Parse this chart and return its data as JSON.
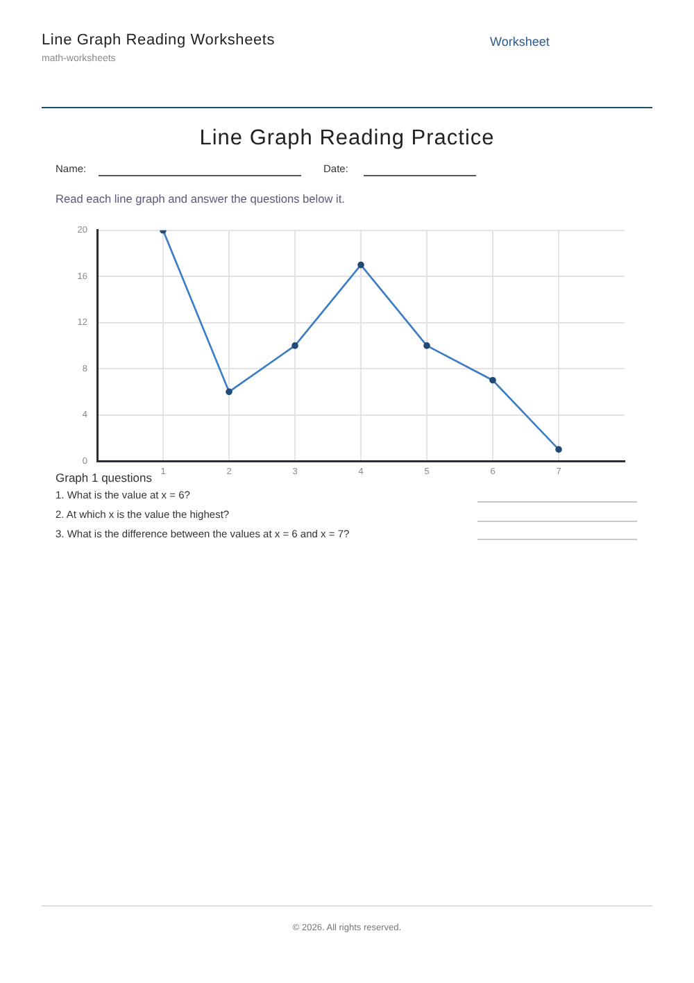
{
  "chart_data": {
    "type": "line",
    "title": "Line Graph Reading Practice",
    "subtitle": "Read each line graph and answer the questions below it.",
    "x": [
      1,
      2,
      3,
      4,
      5,
      6,
      7
    ],
    "series": [
      {
        "color": "#3a7cc6",
        "values": [
          20,
          6,
          10,
          17,
          10,
          7,
          1
        ]
      }
    ],
    "xlim": [
      0,
      8
    ],
    "xticks": [
      1,
      2,
      3,
      4,
      5,
      6,
      7
    ],
    "ylim": [
      0,
      20
    ],
    "yticks": [
      0,
      4,
      8,
      12,
      16,
      20
    ],
    "grid": true,
    "marker": "circle",
    "line_style": "solid",
    "annotations": [
      "Line Graph Reading Worksheets",
      "math-worksheets",
      "Worksheet",
      "Name:",
      "Date:",
      "Graph 1 questions",
      "1. What is the value at x = 6?",
      "2. At which x is the value the highest?",
      "3. What is the difference between the values at x = 6 and x = 7?",
      "© 2026. All rights reserved."
    ]
  }
}
